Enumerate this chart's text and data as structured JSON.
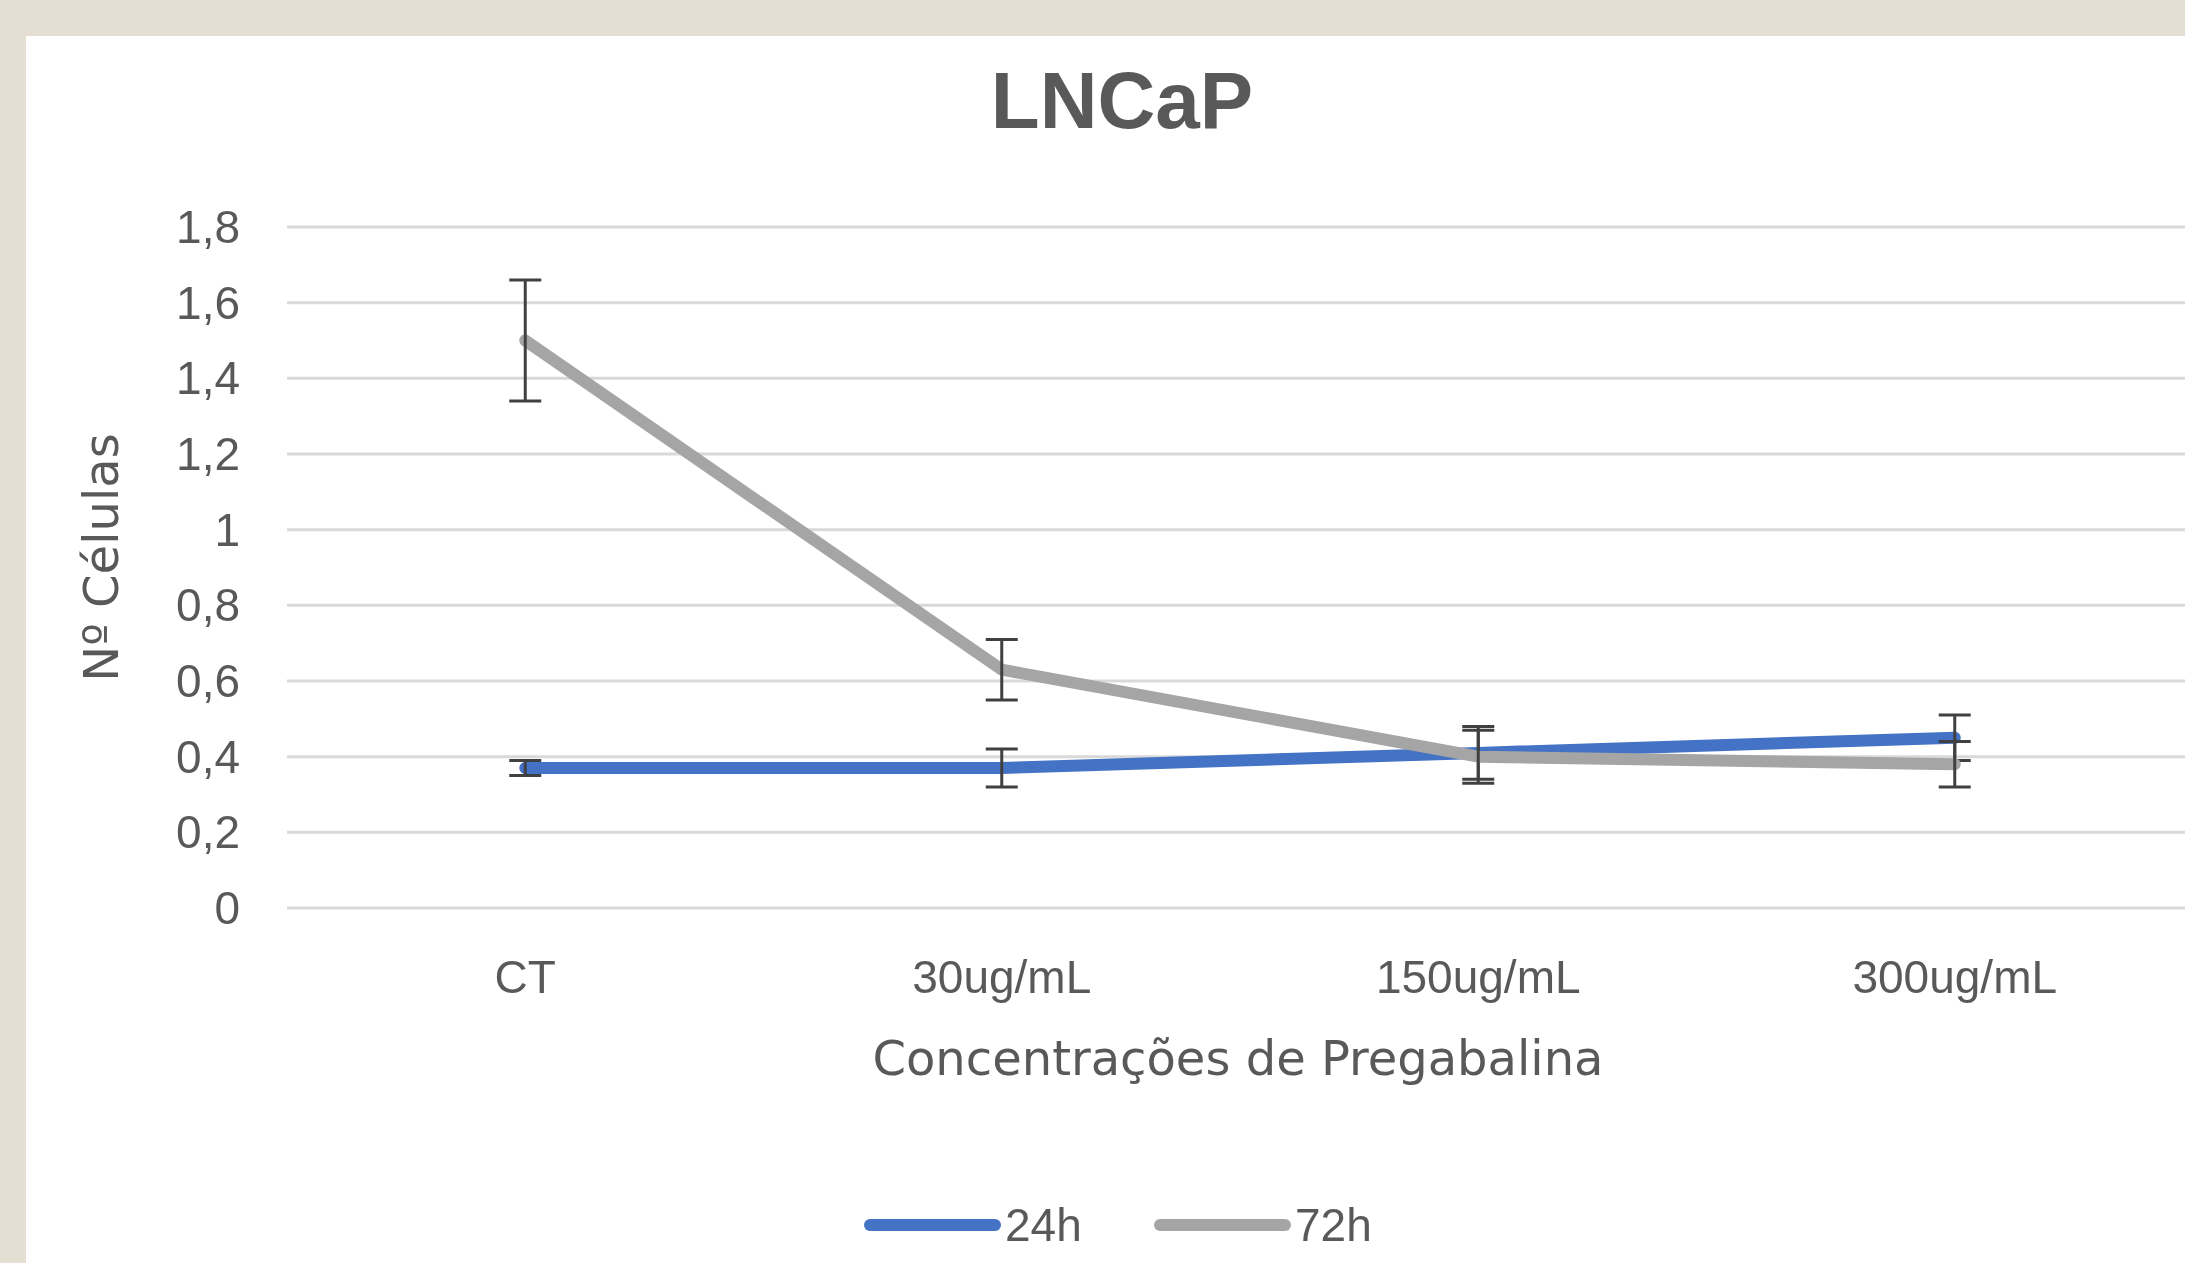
{
  "chart_data": {
    "type": "line",
    "title": "LNCaP",
    "xlabel": "Concentrações de Pregabalina",
    "ylabel": "Nº Células",
    "categories": [
      "CT",
      "30ug/mL",
      "150ug/mL",
      "300ug/mL"
    ],
    "series": [
      {
        "name": "24h",
        "color": "#4472c4",
        "values": [
          0.37,
          0.37,
          0.41,
          0.45
        ],
        "errors": [
          0.02,
          0.05,
          0.07,
          0.06
        ]
      },
      {
        "name": "72h",
        "color": "#a5a5a5",
        "values": [
          1.5,
          0.63,
          0.4,
          0.38
        ],
        "errors": [
          0.16,
          0.08,
          0.07,
          0.06
        ]
      }
    ],
    "ylim": [
      0,
      1.8
    ],
    "yticks": [
      {
        "value": 0,
        "label": "0"
      },
      {
        "value": 0.2,
        "label": "0,2"
      },
      {
        "value": 0.4,
        "label": "0,4"
      },
      {
        "value": 0.6,
        "label": "0,6"
      },
      {
        "value": 0.8,
        "label": "0,8"
      },
      {
        "value": 1,
        "label": "1"
      },
      {
        "value": 1.2,
        "label": "1,2"
      },
      {
        "value": 1.4,
        "label": "1,4"
      },
      {
        "value": 1.6,
        "label": "1,6"
      },
      {
        "value": 1.8,
        "label": "1,8"
      }
    ],
    "grid": "y",
    "legend": "bottom",
    "marker": "none",
    "line_style": "solid"
  }
}
